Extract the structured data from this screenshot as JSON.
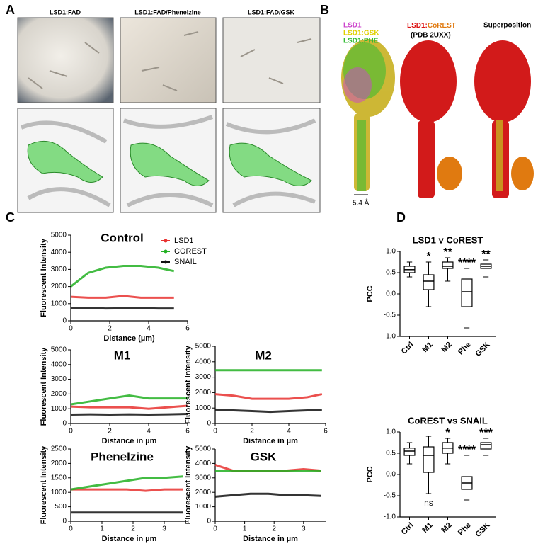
{
  "panel_labels": [
    "A",
    "B",
    "C",
    "D"
  ],
  "panel_a": {
    "labels": [
      "LSD1:FAD",
      "LSD1:FAD/Phenelzine",
      "LSD1:FAD/GSK"
    ]
  },
  "panel_b": {
    "legend": [
      {
        "name": "LSD1",
        "color": "#cc44cc"
      },
      {
        "name": "LSD1:GSK",
        "color": "#e0d000"
      },
      {
        "name": "LSD1:PHE",
        "color": "#33bb33"
      }
    ],
    "complex": [
      {
        "text": "LSD1:",
        "color": "#dd1111"
      },
      {
        "text": "CoREST",
        "color": "#e07a10"
      }
    ],
    "pdb": "(PDB 2UXX)",
    "superposition": "Superposition",
    "distance": "5.4 Å"
  },
  "chart_data": [
    {
      "type": "line",
      "title": "Control",
      "x_label": "Distance (µm)",
      "y_label": "Fluorescent Intensity",
      "x": [
        0,
        0.9,
        1.8,
        2.7,
        3.6,
        4.5,
        5.3
      ],
      "xlim": [
        0,
        6
      ],
      "xticks": [
        0,
        2,
        4,
        6
      ],
      "ylim": [
        0,
        5000
      ],
      "yticks": [
        0,
        1000,
        2000,
        3000,
        4000,
        5000
      ],
      "series": [
        {
          "name": "LSD1",
          "color": "#e8312f",
          "values": [
            1400,
            1350,
            1350,
            1450,
            1350,
            1350,
            1350
          ]
        },
        {
          "name": "COREST",
          "color": "#22b022",
          "values": [
            2000,
            2800,
            3100,
            3200,
            3200,
            3100,
            2900
          ]
        },
        {
          "name": "SNAIL",
          "color": "#111111",
          "values": [
            750,
            750,
            720,
            730,
            740,
            720,
            720
          ]
        }
      ]
    },
    {
      "type": "line",
      "title": "M1",
      "x_label": "Distance in µm",
      "y_label": "Fluorescent Intensity",
      "x": [
        0,
        1,
        2,
        3,
        4,
        5,
        6
      ],
      "xlim": [
        0,
        6
      ],
      "xticks": [
        0,
        2,
        4,
        6
      ],
      "ylim": [
        0,
        5000
      ],
      "yticks": [
        0,
        1000,
        2000,
        3000,
        4000,
        5000
      ],
      "series": [
        {
          "color": "#e8312f",
          "values": [
            1150,
            1100,
            1100,
            1100,
            1000,
            1100,
            1200
          ]
        },
        {
          "color": "#22b022",
          "values": [
            1300,
            1500,
            1700,
            1900,
            1700,
            1700,
            1700
          ]
        },
        {
          "color": "#111111",
          "values": [
            600,
            620,
            600,
            620,
            600,
            620,
            650
          ]
        }
      ]
    },
    {
      "type": "line",
      "title": "M2",
      "x_label": "Distance in µm",
      "y_label": "Fluorescent Intensity",
      "x": [
        0,
        1,
        2,
        3,
        4,
        5,
        5.8
      ],
      "xlim": [
        0,
        6
      ],
      "xticks": [
        0,
        2,
        4,
        6
      ],
      "ylim": [
        0,
        5000
      ],
      "yticks": [
        0,
        1000,
        2000,
        3000,
        4000,
        5000
      ],
      "series": [
        {
          "color": "#e8312f",
          "values": [
            1900,
            1800,
            1600,
            1600,
            1600,
            1700,
            1900
          ]
        },
        {
          "color": "#22b022",
          "values": [
            3450,
            3450,
            3450,
            3450,
            3450,
            3450,
            3450
          ]
        },
        {
          "color": "#111111",
          "values": [
            900,
            850,
            800,
            750,
            800,
            850,
            850
          ]
        }
      ]
    },
    {
      "type": "line",
      "title": "Phenelzine",
      "x_label": "Distance in µm",
      "y_label": "Fluorescent Intensity",
      "x": [
        0,
        0.6,
        1.2,
        1.8,
        2.4,
        3,
        3.6
      ],
      "xlim": [
        0,
        3.75
      ],
      "xticks": [
        0,
        1,
        2,
        3
      ],
      "ylim": [
        0,
        2500
      ],
      "yticks": [
        0,
        500,
        1000,
        1500,
        2000,
        2500
      ],
      "series": [
        {
          "color": "#e8312f",
          "values": [
            1100,
            1100,
            1100,
            1100,
            1050,
            1100,
            1100
          ]
        },
        {
          "color": "#22b022",
          "values": [
            1100,
            1200,
            1300,
            1400,
            1500,
            1500,
            1550
          ]
        },
        {
          "color": "#111111",
          "values": [
            300,
            300,
            300,
            300,
            300,
            300,
            300
          ]
        }
      ]
    },
    {
      "type": "line",
      "title": "GSK",
      "x_label": "Distance in µm",
      "y_label": "Fluorescent Intensity",
      "x": [
        0,
        0.6,
        1.2,
        1.8,
        2.4,
        3,
        3.6
      ],
      "xlim": [
        0,
        3.75
      ],
      "xticks": [
        0,
        1,
        2,
        3
      ],
      "ylim": [
        0,
        5000
      ],
      "yticks": [
        0,
        1000,
        2000,
        3000,
        4000,
        5000
      ],
      "series": [
        {
          "color": "#e8312f",
          "values": [
            3900,
            3500,
            3500,
            3500,
            3500,
            3600,
            3500
          ]
        },
        {
          "color": "#22b022",
          "values": [
            3500,
            3500,
            3500,
            3500,
            3500,
            3500,
            3500
          ]
        },
        {
          "color": "#111111",
          "values": [
            1700,
            1800,
            1900,
            1900,
            1800,
            1800,
            1750
          ]
        }
      ]
    },
    {
      "type": "box",
      "title": "LSD1 v CoREST",
      "y_label": "PCC",
      "categories": [
        "Ctrl",
        "M1",
        "M2",
        "Phe",
        "GSK"
      ],
      "ylim": [
        -1,
        1
      ],
      "yticks": [
        {
          "value": -1,
          "label": "-1.0"
        },
        {
          "value": -0.5,
          "label": "-0.5"
        },
        {
          "value": 0,
          "label": "0.0"
        },
        {
          "value": 0.5,
          "label": "0.5"
        },
        {
          "value": 1,
          "label": "1.0"
        }
      ],
      "min": [
        0.4,
        -0.3,
        0.3,
        -0.8,
        0.4
      ],
      "q1": [
        0.5,
        0.1,
        0.6,
        -0.3,
        0.6
      ],
      "median": [
        0.57,
        0.3,
        0.65,
        0.05,
        0.65
      ],
      "q3": [
        0.65,
        0.45,
        0.75,
        0.35,
        0.7
      ],
      "max": [
        0.75,
        0.75,
        0.85,
        0.6,
        0.8
      ],
      "annotations": [
        null,
        "*",
        "**",
        "****",
        "**"
      ]
    },
    {
      "type": "box",
      "title": "CoREST vs SNAIL",
      "y_label": "PCC",
      "categories": [
        "Ctrl",
        "M1",
        "M2",
        "Phe",
        "GSK"
      ],
      "ylim": [
        -1,
        1
      ],
      "yticks": [
        {
          "value": -1,
          "label": "-1.0"
        },
        {
          "value": -0.5,
          "label": "-0.5"
        },
        {
          "value": 0,
          "label": "0.0"
        },
        {
          "value": 0.5,
          "label": "0.5"
        },
        {
          "value": 1,
          "label": "1.0"
        }
      ],
      "min": [
        0.25,
        -0.45,
        0.25,
        -0.6,
        0.45
      ],
      "q1": [
        0.45,
        0.05,
        0.5,
        -0.35,
        0.6
      ],
      "median": [
        0.55,
        0.45,
        0.62,
        -0.2,
        0.7
      ],
      "q3": [
        0.62,
        0.65,
        0.75,
        -0.05,
        0.75
      ],
      "max": [
        0.75,
        0.9,
        0.85,
        0.45,
        0.85
      ],
      "annotations": [
        null,
        null,
        "*",
        "****",
        "***"
      ],
      "annotations_below": [
        null,
        "ns",
        null,
        null,
        null
      ]
    }
  ]
}
